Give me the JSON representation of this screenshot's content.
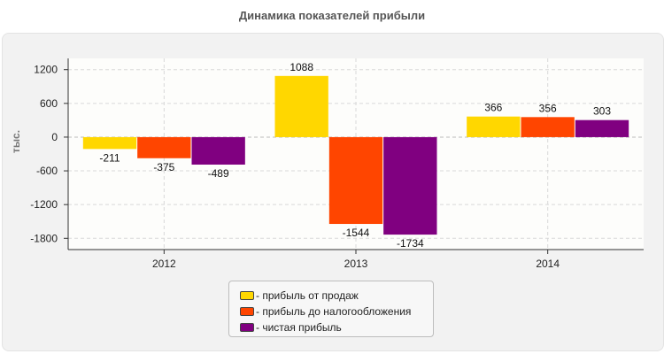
{
  "chart_data": {
    "type": "bar",
    "title": "Динамика показателей прибыли",
    "ylabel": "тыс.",
    "xlabel": "",
    "categories": [
      "2012",
      "2013",
      "2014"
    ],
    "series": [
      {
        "name": "- прибыль от продаж",
        "color": "#ffd700",
        "values": [
          -211,
          1088,
          366
        ]
      },
      {
        "name": "- прибыль до налогообложения",
        "color": "#ff4500",
        "values": [
          -375,
          -1544,
          356
        ]
      },
      {
        "name": "- чистая прибыль",
        "color": "#800080",
        "values": [
          -489,
          -1734,
          303
        ]
      }
    ],
    "ylim": [
      -2000,
      1400
    ],
    "yticks": [
      1200,
      600,
      0,
      -600,
      -1200,
      -1800
    ],
    "grid": true,
    "legend_placement": "bottom-center"
  }
}
